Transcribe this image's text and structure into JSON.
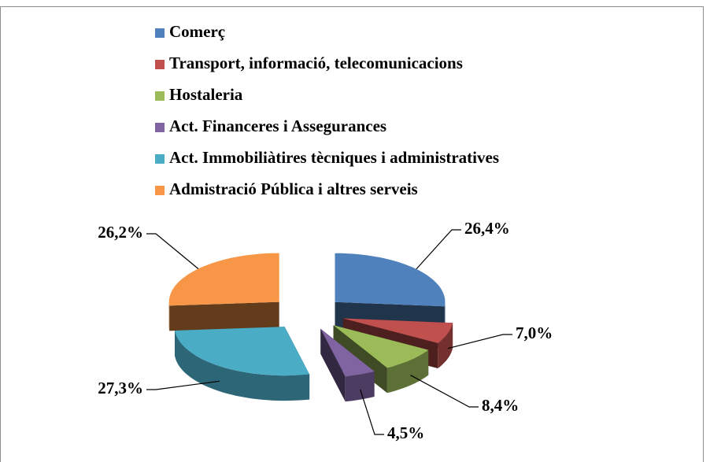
{
  "chart_data": {
    "type": "pie3d",
    "categories": [
      "Comerç",
      "Transport, informació, telecomunicacions",
      "Hostaleria",
      "Act. Financeres i Assegurances",
      "Act. Immobiliàtires tècniques i administratives",
      "Admistració Pública i altres serveis"
    ],
    "values": [
      26.4,
      7.0,
      8.4,
      4.5,
      27.3,
      26.2
    ],
    "value_labels": [
      "26,4%",
      "7,0%",
      "8,4%",
      "4,5%",
      "27,3%",
      "26,2%"
    ],
    "colors": [
      "#4f81bd",
      "#c0504d",
      "#9bbb59",
      "#8064a2",
      "#4bacc6",
      "#f79646"
    ],
    "legend": "top"
  }
}
